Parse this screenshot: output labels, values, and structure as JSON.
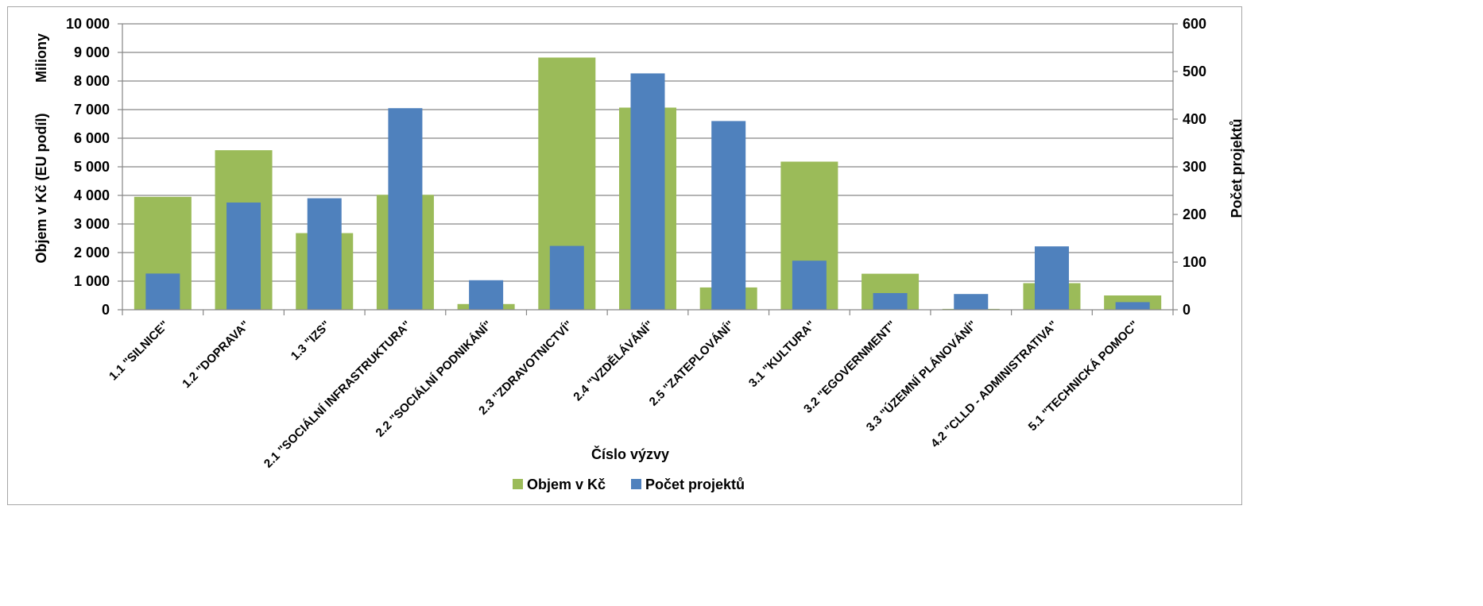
{
  "chart_data": {
    "type": "bar",
    "title": "",
    "categories": [
      "1.1 \"SILNICE\"",
      "1.2 \"DOPRAVA\"",
      "1.3 \"IZS\"",
      "2.1 \"SOCIÁLNÍ INFRASTRUKTURA\"",
      "2.2 \"SOCIÁLNÍ PODNIKÁNÍ\"",
      "2.3 \"ZDRAVOTNICTVÍ\"",
      "2.4 \"VZDĚLÁVÁNÍ\"",
      "2.5 \"ZATEPLOVÁNÍ\"",
      "3.1 \"KULTURA\"",
      "3.2 \"EGOVERNMENT\"",
      "3.3 \"ÚZEMNÍ PLÁNOVÁNÍ\"",
      "4.2 \"CLLD - ADMINISTRATIVA\"",
      "5.1 \"TECHNICKÁ POMOC\""
    ],
    "series": [
      {
        "name": "Objem v Kč",
        "axis": "left",
        "color": "#9bbb59",
        "values": [
          3950,
          5580,
          2680,
          4020,
          200,
          8820,
          7070,
          780,
          5180,
          1260,
          30,
          930,
          500
        ]
      },
      {
        "name": "Počet projektů",
        "axis": "right",
        "color": "#4f81bd",
        "values": [
          76,
          225,
          234,
          423,
          62,
          134,
          496,
          396,
          103,
          35,
          33,
          133,
          16
        ]
      }
    ],
    "xlabel": "Číslo výzvy",
    "ylabel": "Objem v Kč (EU podíl)",
    "ylabel_unit": "Miliony",
    "y2label": "Počet projektů",
    "ylim": [
      0,
      10000
    ],
    "y2lim": [
      0,
      600
    ],
    "yticks": [
      "0",
      "1 000",
      "2 000",
      "3 000",
      "4 000",
      "5 000",
      "6 000",
      "7 000",
      "8 000",
      "9 000",
      "10 000"
    ],
    "y2ticks": [
      "0",
      "100",
      "200",
      "300",
      "400",
      "500",
      "600"
    ],
    "grid": true,
    "legend": "bottom"
  }
}
